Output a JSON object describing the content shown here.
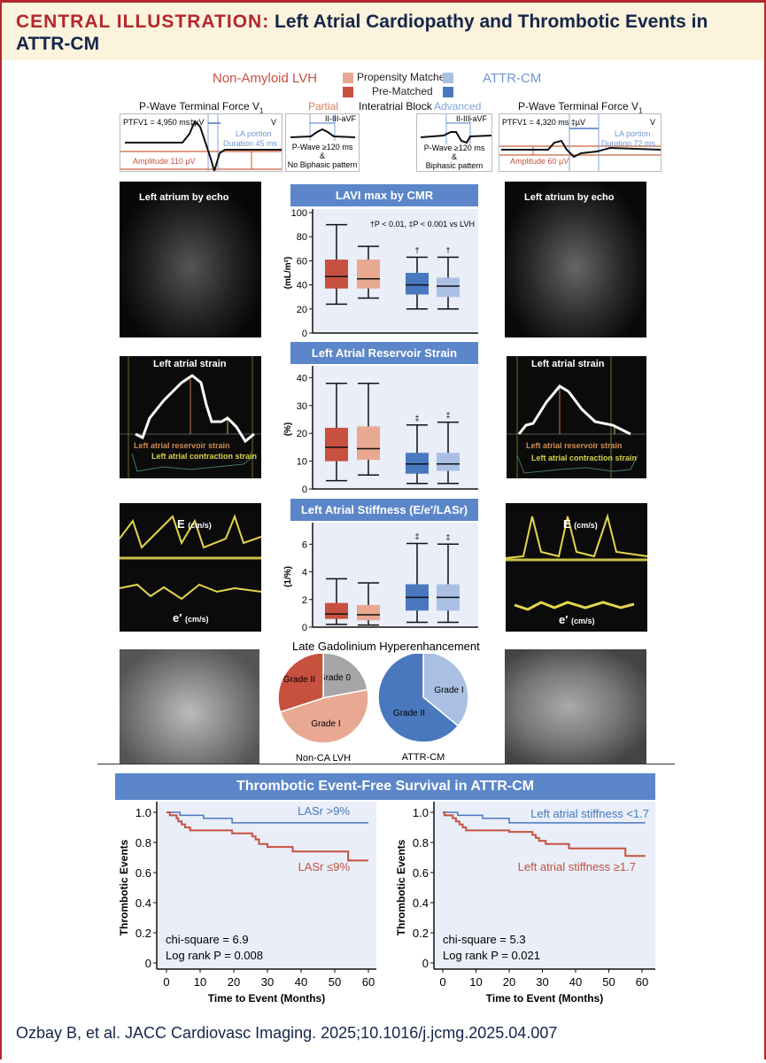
{
  "title": {
    "lead": "CENTRAL ILLUSTRATION:",
    "text": "Left Atrial Cardiopathy and Thrombotic Events in ATTR-CM"
  },
  "colors": {
    "lvh_pre": "#c8503f",
    "lvh_psm": "#e8a892",
    "attr_pre": "#4a78bf",
    "attr_psm": "#a9c0e3",
    "grade0": "#a6a6a6",
    "band": "#5b86c9",
    "chart_bg": "#e9eef8"
  },
  "legend": {
    "lvh": "Non-Amyloid LVH",
    "attr": "ATTR-CM",
    "psm": "Propensity Matched",
    "pre": "Pre-Matched"
  },
  "ecg": {
    "left": {
      "title": "P-Wave Terminal Force V",
      "sub": "1",
      "ptf": "PTFV1 = 4,950 ms‡µV",
      "lead": "V",
      "la": "LA portion",
      "dur": "Duration 45 ms",
      "amp": "Amplitude 110 µV"
    },
    "right": {
      "title": "P-Wave Terminal Force V",
      "sub": "1",
      "ptf": "PTFV1 = 4,320 ms ‡µV",
      "lead": "V",
      "la": "LA portion",
      "dur": "Duration 72 ms",
      "amp": "Amplitude 60 µV"
    },
    "iab": {
      "label": "Interatrial Block",
      "partial": "Partial",
      "advanced": "Advanced",
      "leads": "II-III-aVF",
      "partial_text": [
        "P-Wave ≥120 ms",
        "&",
        "No Biphasic pattern"
      ],
      "advanced_text": [
        "P-Wave ≥120 ms",
        "&",
        "Biphasic pattern"
      ]
    }
  },
  "images": {
    "echo_left": "Left atrium by echo",
    "echo_right": "Left atrium by echo",
    "strain_title": "Left atrial strain",
    "strain_res": "Left atrial reservoir strain",
    "strain_con": "Left atrial contraction strain",
    "doppler_E": "E",
    "doppler_e": "e′",
    "doppler_unit": "(cm/s)"
  },
  "chart_data": [
    {
      "id": "lavi",
      "type": "box",
      "title": "LAVI max by CMR",
      "ylabel": "(mL/m²)",
      "ylim": [
        0,
        100
      ],
      "yticks": [
        0,
        20,
        40,
        60,
        80,
        100
      ],
      "annotation": "†P < 0.01, ‡P < 0.001 vs LVH",
      "groups": [
        {
          "group": "Non-Amyloid LVH Pre-Matched",
          "color": "#c8503f",
          "min": 24,
          "q1": 37,
          "median": 47,
          "q3": 61,
          "max": 90,
          "mark": ""
        },
        {
          "group": "Non-Amyloid LVH Propensity Matched",
          "color": "#e8a892",
          "min": 29,
          "q1": 37,
          "median": 45,
          "q3": 61,
          "max": 72,
          "mark": ""
        },
        {
          "group": "ATTR-CM Pre-Matched",
          "color": "#4a78bf",
          "min": 20,
          "q1": 32,
          "median": 40,
          "q3": 50,
          "max": 63,
          "mark": "†"
        },
        {
          "group": "ATTR-CM Propensity Matched",
          "color": "#a9c0e3",
          "min": 20,
          "q1": 30,
          "median": 39,
          "q3": 46,
          "max": 63,
          "mark": "†"
        }
      ]
    },
    {
      "id": "lasr",
      "type": "box",
      "title": "Left Atrial Reservoir Strain",
      "ylabel": "(%)",
      "ylim": [
        0,
        43
      ],
      "yticks": [
        0,
        10,
        20,
        30,
        40
      ],
      "groups": [
        {
          "group": "Non-Amyloid LVH Pre-Matched",
          "color": "#c8503f",
          "min": 3,
          "q1": 10,
          "median": 15,
          "q3": 22,
          "max": 38,
          "mark": ""
        },
        {
          "group": "Non-Amyloid LVH Propensity Matched",
          "color": "#e8a892",
          "min": 5,
          "q1": 10.5,
          "median": 14.5,
          "q3": 22.5,
          "max": 38,
          "mark": ""
        },
        {
          "group": "ATTR-CM Pre-Matched",
          "color": "#4a78bf",
          "min": 2,
          "q1": 5.5,
          "median": 9,
          "q3": 13,
          "max": 23,
          "mark": "‡"
        },
        {
          "group": "ATTR-CM Propensity Matched",
          "color": "#a9c0e3",
          "min": 2,
          "q1": 6.5,
          "median": 9,
          "q3": 13,
          "max": 24,
          "mark": "‡"
        }
      ]
    },
    {
      "id": "stiff",
      "type": "box",
      "title": "Left Atrial Stiffness (E/e′/LASr)",
      "ylabel": "(1/%)",
      "ylim": [
        0,
        7.3
      ],
      "yticks": [
        0,
        2,
        4,
        6
      ],
      "groups": [
        {
          "group": "Non-Amyloid LVH Pre-Matched",
          "color": "#c8503f",
          "min": 0.2,
          "q1": 0.6,
          "median": 0.95,
          "q3": 1.75,
          "max": 3.5,
          "mark": ""
        },
        {
          "group": "Non-Amyloid LVH Propensity Matched",
          "color": "#e8a892",
          "min": 0.15,
          "q1": 0.5,
          "median": 0.9,
          "q3": 1.6,
          "max": 3.2,
          "mark": ""
        },
        {
          "group": "ATTR-CM Pre-Matched",
          "color": "#4a78bf",
          "min": 0.35,
          "q1": 1.2,
          "median": 2.15,
          "q3": 3.1,
          "max": 6.05,
          "mark": "‡"
        },
        {
          "group": "ATTR-CM Propensity Matched",
          "color": "#a9c0e3",
          "min": 0.35,
          "q1": 1.2,
          "median": 2.15,
          "q3": 3.1,
          "max": 6.0,
          "mark": "‡"
        }
      ]
    },
    {
      "id": "pie_lvh",
      "type": "pie",
      "title": "Late Gadolinium Hyperenhancement",
      "label": "Non-CA LVH",
      "slices": [
        {
          "name": "Grade 0",
          "value": 22,
          "color": "#a6a6a6"
        },
        {
          "name": "Grade I",
          "value": 48,
          "color": "#e8a892"
        },
        {
          "name": "Grade II",
          "value": 30,
          "color": "#c8503f"
        }
      ]
    },
    {
      "id": "pie_attr",
      "type": "pie",
      "label": "ATTR-CM",
      "slices": [
        {
          "name": "Grade I",
          "value": 36,
          "color": "#a9c0e3"
        },
        {
          "name": "Grade II",
          "value": 64,
          "color": "#4a78bf"
        }
      ]
    },
    {
      "id": "km_lasr",
      "type": "line",
      "title": "Thrombotic Event-Free Survival in ATTR-CM",
      "xlabel": "Time to Event (Months)",
      "ylabel": "Thrombotic Events",
      "xlim": [
        0,
        60
      ],
      "ylim": [
        0,
        1
      ],
      "xticks": [
        0,
        10,
        20,
        30,
        40,
        50,
        60
      ],
      "yticks": [
        "0",
        "0.2",
        "0.4",
        "0.6",
        "0.8",
        "1.0"
      ],
      "stats": [
        "chi-square = 6.9",
        "Log rank P = 0.008"
      ],
      "series": [
        {
          "name": "LASr >9%",
          "color": "#4a78bf",
          "points": [
            [
              0,
              1
            ],
            [
              4,
              0.98
            ],
            [
              11,
              0.96
            ],
            [
              19.5,
              0.93
            ],
            [
              60,
              0.93
            ]
          ]
        },
        {
          "name": "LASr ≤9%",
          "color": "#c8503f",
          "points": [
            [
              0,
              1
            ],
            [
              1,
              0.98
            ],
            [
              3,
              0.96
            ],
            [
              3.5,
              0.94
            ],
            [
              4.5,
              0.92
            ],
            [
              5.5,
              0.9
            ],
            [
              7,
              0.88
            ],
            [
              19.5,
              0.86
            ],
            [
              25.5,
              0.84
            ],
            [
              26.5,
              0.82
            ],
            [
              27.5,
              0.79
            ],
            [
              30,
              0.77
            ],
            [
              37.5,
              0.74
            ],
            [
              54,
              0.68
            ],
            [
              60,
              0.68
            ]
          ]
        }
      ]
    },
    {
      "id": "km_stiff",
      "type": "line",
      "xlabel": "Time to Event (Months)",
      "ylabel": "Thrombotic Events",
      "xlim": [
        0,
        61
      ],
      "ylim": [
        0,
        1
      ],
      "xticks": [
        0,
        10,
        20,
        30,
        40,
        50,
        60
      ],
      "yticks": [
        "0",
        "0.2",
        "0.4",
        "0.6",
        "0.8",
        "1.0"
      ],
      "stats": [
        "chi-square = 5.3",
        "Log rank P = 0.021"
      ],
      "series": [
        {
          "name": "Left atrial stiffness <1.7",
          "color": "#4a78bf",
          "points": [
            [
              0,
              1
            ],
            [
              4.5,
              0.98
            ],
            [
              12,
              0.96
            ],
            [
              20,
              0.93
            ],
            [
              61,
              0.93
            ]
          ]
        },
        {
          "name": "Left atrial stiffness ≥1.7",
          "color": "#c8503f",
          "points": [
            [
              0,
              1
            ],
            [
              0.5,
              0.98
            ],
            [
              3,
              0.96
            ],
            [
              4,
              0.94
            ],
            [
              5,
              0.92
            ],
            [
              6,
              0.9
            ],
            [
              7,
              0.88
            ],
            [
              20,
              0.87
            ],
            [
              27,
              0.85
            ],
            [
              28,
              0.83
            ],
            [
              29,
              0.81
            ],
            [
              31,
              0.79
            ],
            [
              38,
              0.76
            ],
            [
              55,
              0.71
            ],
            [
              61,
              0.71
            ]
          ]
        }
      ]
    }
  ],
  "footer": "Ozbay B, et al. JACC Cardiovasc Imaging. 2025;10.1016/j.jcmg.2025.04.007"
}
